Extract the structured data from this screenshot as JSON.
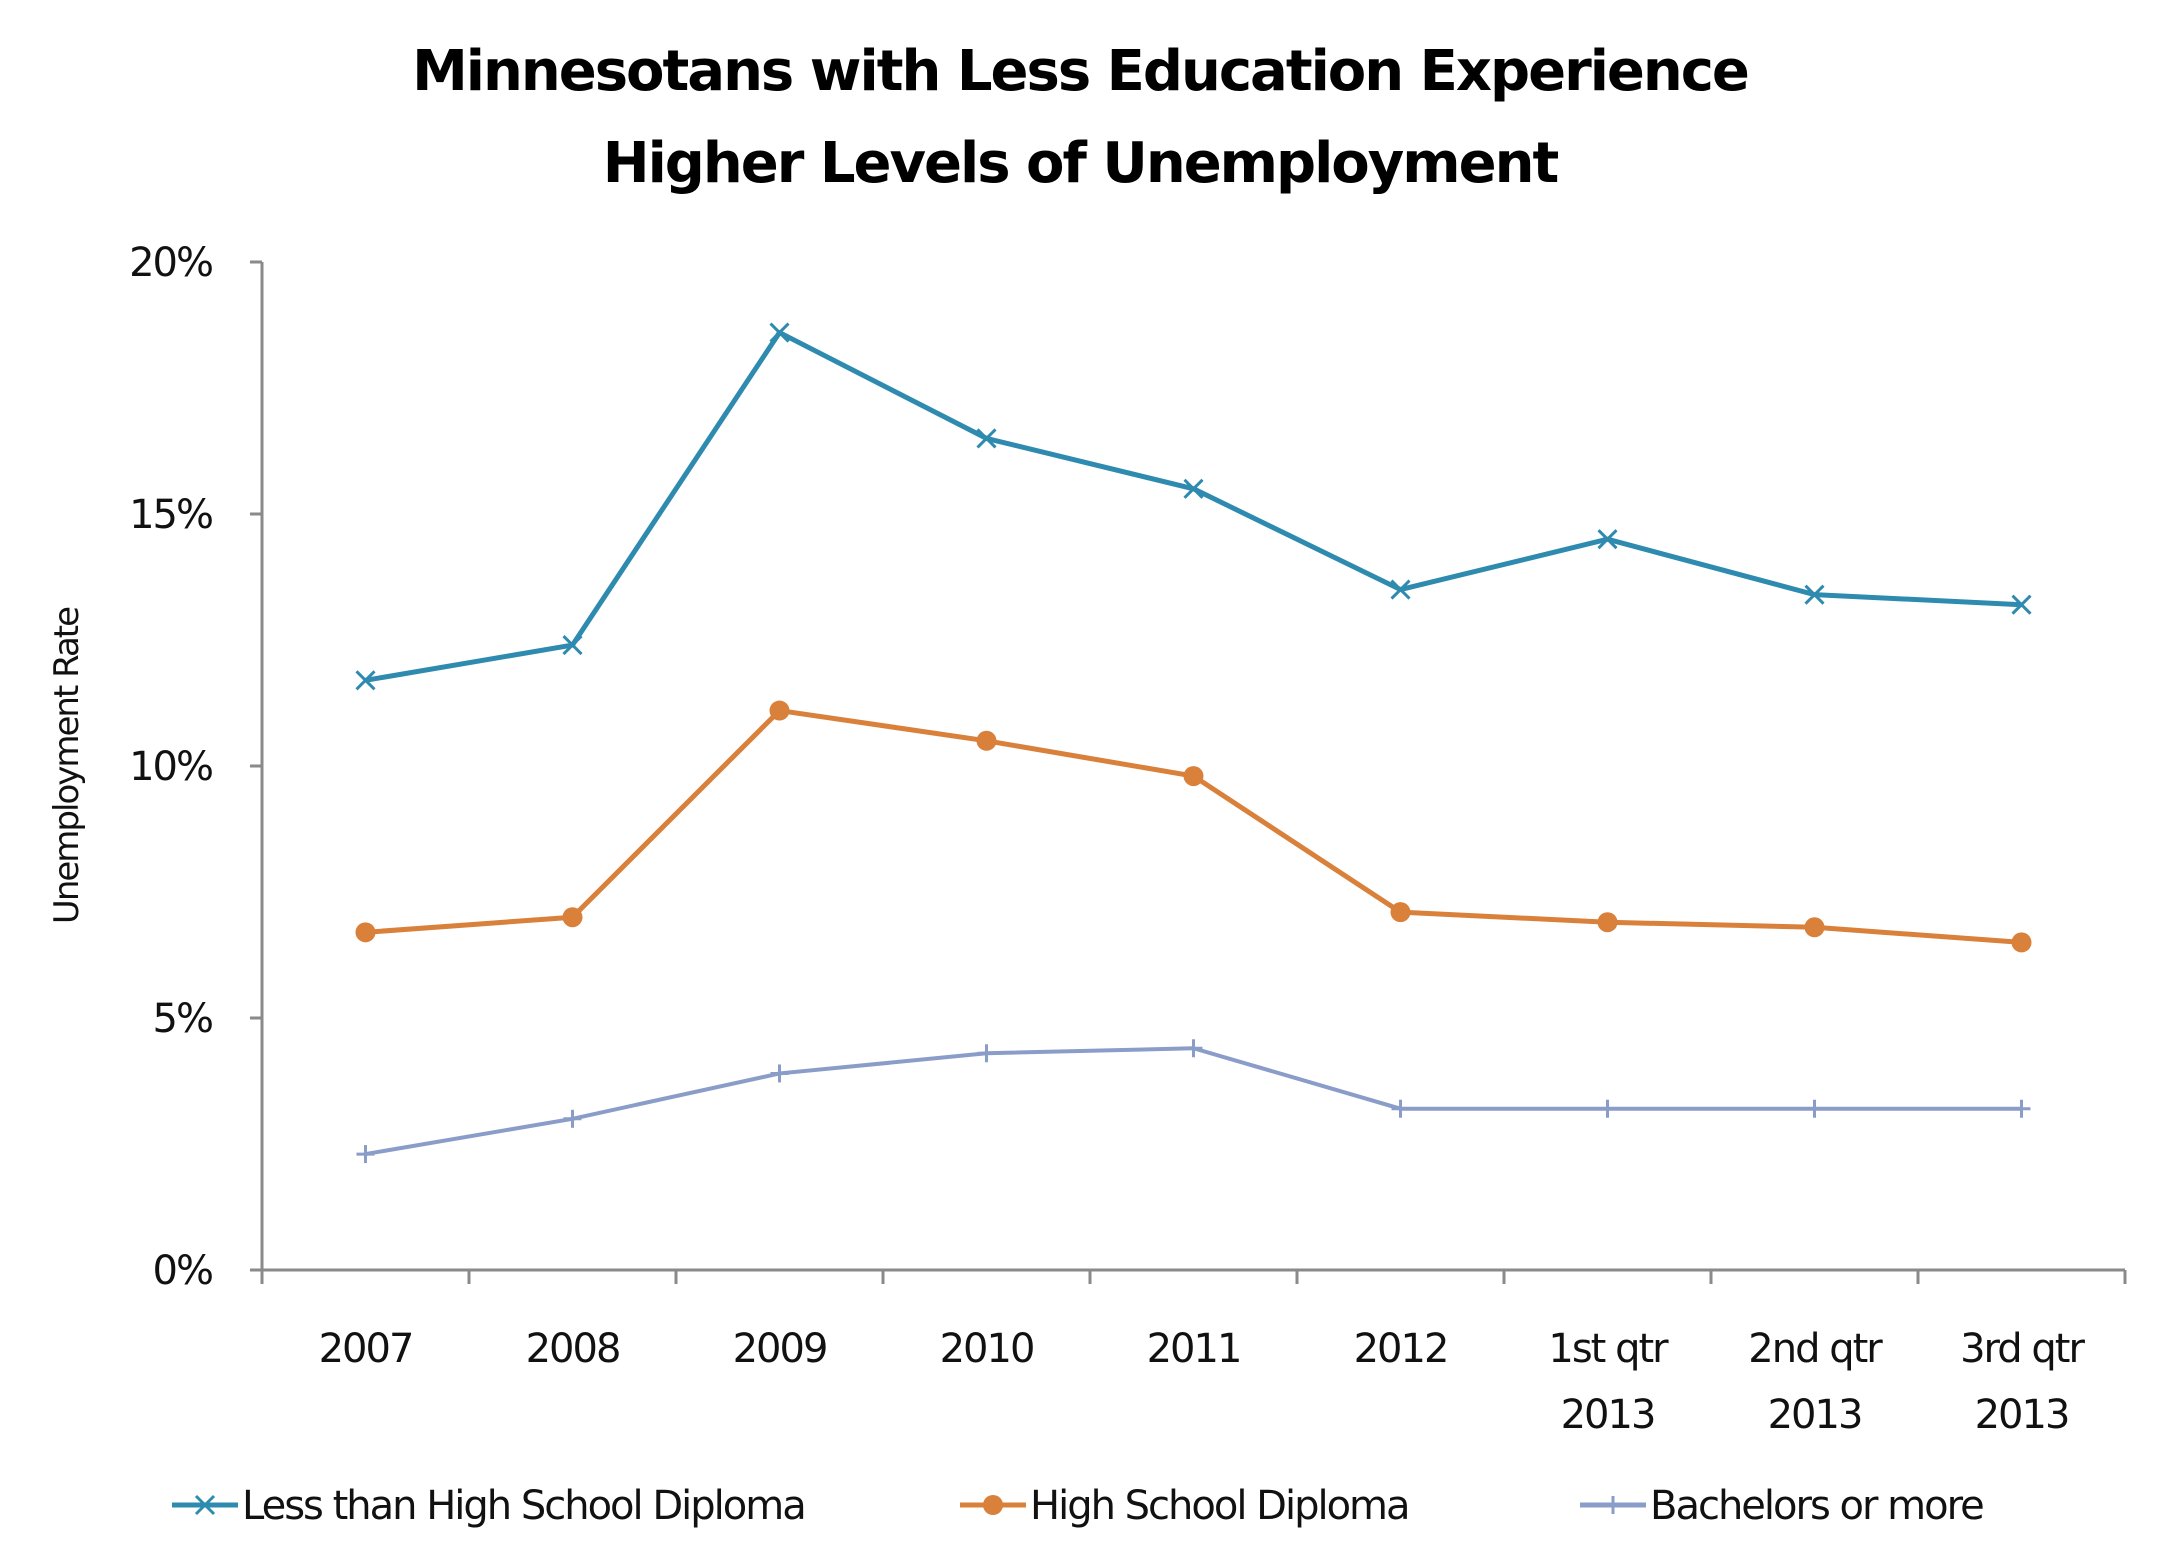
{
  "chart_data": {
    "type": "line",
    "title": [
      "Minnesotans with Less Education Experience",
      "Higher Levels of Unemployment"
    ],
    "xlabel": "",
    "ylabel": "Unemployment Rate",
    "ylim": [
      0,
      20
    ],
    "yticks": [
      0,
      5,
      10,
      15,
      20
    ],
    "ytick_labels": [
      "0%",
      "5%",
      "10%",
      "15%",
      "20%"
    ],
    "categories": [
      [
        "2007"
      ],
      [
        "2008"
      ],
      [
        "2009"
      ],
      [
        "2010"
      ],
      [
        "2011"
      ],
      [
        "2012"
      ],
      [
        "1st qtr",
        "2013"
      ],
      [
        "2nd qtr",
        "2013"
      ],
      [
        "3rd qtr",
        "2013"
      ]
    ],
    "grid": false,
    "legend_position": "bottom",
    "series": [
      {
        "name": "Less than High School Diploma",
        "color": "#2E8BAF",
        "marker": "x",
        "values": [
          11.7,
          12.4,
          18.6,
          16.5,
          15.5,
          13.5,
          14.5,
          13.4,
          13.2
        ]
      },
      {
        "name": "High School Diploma",
        "color": "#D9803A",
        "marker": "circle",
        "values": [
          6.7,
          7.0,
          11.1,
          10.5,
          9.8,
          7.1,
          6.9,
          6.8,
          6.5
        ]
      },
      {
        "name": "Bachelors or more",
        "color": "#8A9CC8",
        "marker": "plus",
        "values": [
          2.3,
          3.0,
          3.9,
          4.3,
          4.4,
          3.2,
          3.2,
          3.2,
          3.2
        ]
      }
    ]
  }
}
